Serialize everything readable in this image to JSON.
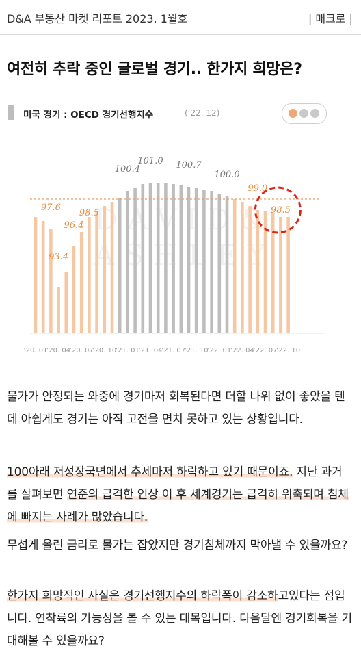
{
  "header": {
    "brand": "D&A 부동산 마켓 리포트 2023. 1월호",
    "tag": "| 매크로 |"
  },
  "headline": "여전히 추락 중인 글로벌 경기.. 한가지 희망은?",
  "chart_label": {
    "title": "미국 경기 : OECD 경기선행지수",
    "date": "(’22. 12)"
  },
  "pager": {
    "icon": "page-dots-icon",
    "active_color": "#f0a878",
    "inactive_color": "#c9c9c9"
  },
  "watermark": "DAVID& ASHLEY",
  "chart_data": {
    "type": "bar",
    "ylim": [
      90,
      102
    ],
    "reference_line": 99.8,
    "colors": {
      "orange": "#f6c7a3",
      "gray": "#bdbdbd",
      "label": "#e8893a",
      "highlight_circle": "#d9251c"
    },
    "tick_labels": [
      "’20. 01",
      "’20. 04",
      "’20. 07",
      "’20. 10",
      "’21. 01",
      "’21. 04",
      "’21. 07",
      "’21. 10",
      "’22. 01",
      "’22. 04",
      "’22. 07",
      "’22. 10"
    ],
    "values": [
      98.5,
      98.2,
      97.6,
      93.4,
      94.5,
      96.4,
      97.4,
      98.5,
      98.9,
      99.3,
      99.6,
      99.9,
      100.4,
      100.6,
      100.9,
      101.0,
      101.0,
      101.0,
      100.9,
      100.8,
      100.7,
      100.6,
      100.5,
      100.4,
      100.2,
      100.0,
      99.8,
      99.6,
      99.3,
      99.0,
      98.9,
      98.8,
      98.5,
      98.5
    ],
    "gray_range": [
      11,
      25
    ],
    "data_labels": [
      {
        "index": 2,
        "text": "97.6",
        "color": "orange"
      },
      {
        "index": 3,
        "text": "93.4",
        "color": "orange"
      },
      {
        "index": 5,
        "text": "96.4",
        "color": "orange"
      },
      {
        "index": 7,
        "text": "98.5",
        "color": "orange"
      },
      {
        "index": 12,
        "text": "100.4",
        "color": "gray"
      },
      {
        "index": 15,
        "text": "101.0",
        "color": "gray"
      },
      {
        "index": 20,
        "text": "100.7",
        "color": "gray"
      },
      {
        "index": 25,
        "text": "100.0",
        "color": "gray"
      },
      {
        "index": 29,
        "text": "99.0",
        "color": "orange"
      },
      {
        "index": 32,
        "text": "98.5",
        "color": "orange"
      }
    ]
  },
  "body": {
    "p1": "물가가 안정되는 와중에 경기마저 회복된다면 더할 나위 없이 좋았을 텐데 아쉽게도 경기는 아직 고전을 면치 못하고 있는 상황입니다.",
    "p2a": "100아래 저성장국면에서 추세마저 하락하고 있기 때문이죠.",
    "p2b": " 지난 과거를 살펴보면 ",
    "p2c": "연준의 급격한 인상 이 후 세계경기는 급격히 위축되며 침체에 빠지는 사례가 많았습니다.",
    "p3": "무섭게 올린 금리로 물가는 잡았지만 경기침체까지 막아낼 수 있을까요?",
    "p4a": "한가지 희망적인 사실은 경기선행지수의 하락폭이 감소하",
    "p4b": "고있다는 점입니다. 연착륙의 가능성을 볼 수 있는 대목입니다. 다음달엔 경기회복을 기대해볼 수 있을까요?"
  }
}
